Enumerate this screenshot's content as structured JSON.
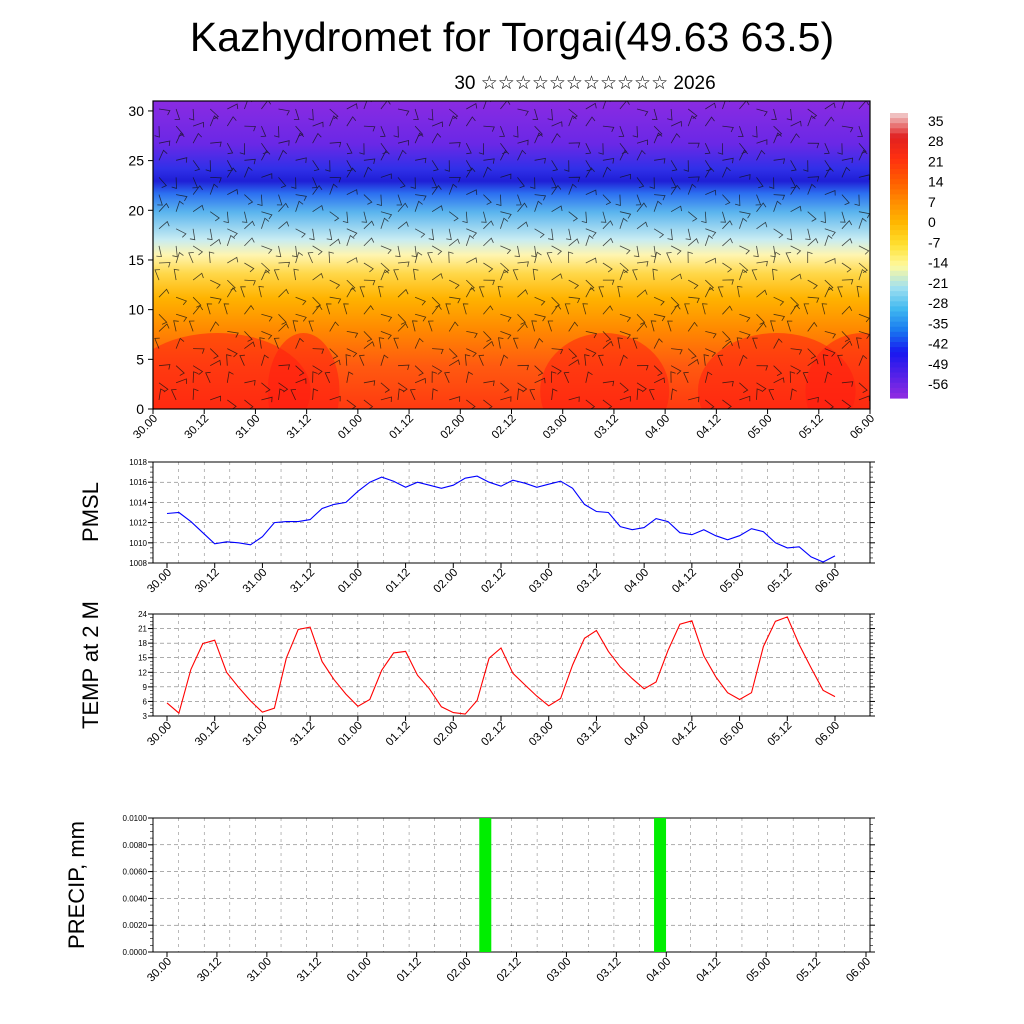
{
  "title": "Kazhydromet for Torgai(49.63 63.5)",
  "subtitle": "30 ☆☆☆☆☆☆☆☆☆☆☆ 2026",
  "time_labels": [
    "30.00",
    "30.12",
    "31.00",
    "31.12",
    "01.00",
    "01.12",
    "02.00",
    "02.12",
    "03.00",
    "03.12",
    "04.00",
    "04.12",
    "05.00",
    "05.12",
    "06.00"
  ],
  "chart_data": [
    {
      "id": "section",
      "type": "heatmap",
      "title": "Kazhydromet for Torgai(49.63 63.5)",
      "xlabel": "",
      "ylabel": "",
      "ylim": [
        0,
        31
      ],
      "yticks": [
        0,
        5,
        10,
        15,
        20,
        25,
        30
      ],
      "colorbar_labels": [
        "35",
        "28",
        "21",
        "14",
        "7",
        "0",
        "-7",
        "-14",
        "-21",
        "-28",
        "-35",
        "-42",
        "-49",
        "-56"
      ],
      "colorbar_colors": [
        "#f0c0c0",
        "#e02020",
        "#ff3010",
        "#ff5a00",
        "#ff8c00",
        "#ffb800",
        "#ffe030",
        "#fffaa0",
        "#a0e0f0",
        "#40b8f0",
        "#1878f0",
        "#1818f0",
        "#5020e8",
        "#8a2be2"
      ]
    },
    {
      "id": "pmsl",
      "type": "line",
      "ylabel": "PMSL",
      "ylim": [
        1008,
        1018
      ],
      "yticks": [
        "1008",
        "1010",
        "1012",
        "1014",
        "1016",
        "1018"
      ],
      "color": "#0000ff",
      "values": [
        1012.9,
        1013.0,
        1012.1,
        1011.0,
        1009.9,
        1010.1,
        1010.0,
        1009.8,
        1010.6,
        1012.0,
        1012.1,
        1012.1,
        1012.3,
        1013.4,
        1013.8,
        1014.0,
        1015.1,
        1016.0,
        1016.5,
        1016.1,
        1015.5,
        1016.0,
        1015.7,
        1015.4,
        1015.7,
        1016.4,
        1016.6,
        1016.0,
        1015.6,
        1016.2,
        1015.9,
        1015.5,
        1015.8,
        1016.1,
        1015.4,
        1013.8,
        1013.1,
        1013.0,
        1011.6,
        1011.3,
        1011.5,
        1012.4,
        1012.1,
        1011.0,
        1010.8,
        1011.3,
        1010.7,
        1010.3,
        1010.7,
        1011.4,
        1011.1,
        1010.0,
        1009.5,
        1009.6,
        1008.6,
        1008.1,
        1008.7
      ]
    },
    {
      "id": "temp",
      "type": "line",
      "ylabel": "TEMP at 2 M",
      "ylim": [
        3,
        24
      ],
      "yticks": [
        "3",
        "6",
        "9",
        "12",
        "15",
        "18",
        "21",
        "24"
      ],
      "color": "#ff0000",
      "values": [
        5.7,
        3.6,
        12.6,
        17.9,
        18.6,
        12.0,
        8.9,
        6.1,
        3.8,
        4.6,
        14.9,
        20.8,
        21.3,
        14.2,
        10.5,
        7.5,
        5.0,
        6.4,
        12.4,
        16.0,
        16.3,
        11.4,
        8.6,
        4.9,
        3.7,
        3.4,
        6.2,
        14.9,
        17.0,
        11.8,
        9.4,
        7.1,
        5.1,
        6.6,
        13.5,
        19.0,
        20.6,
        16.3,
        13.1,
        10.7,
        8.6,
        10.0,
        16.5,
        21.9,
        22.6,
        15.4,
        11.1,
        7.8,
        6.4,
        7.8,
        17.3,
        22.5,
        23.4,
        17.7,
        12.9,
        8.3,
        7.0
      ]
    },
    {
      "id": "precip",
      "type": "bar",
      "ylabel": "PRECIP, mm",
      "ylim": [
        0,
        0.01
      ],
      "yticks": [
        "0.0000",
        "0.0020",
        "0.0040",
        "0.0060",
        "0.0080",
        "0.0100"
      ],
      "color": "#00ee00",
      "bars": [
        {
          "step": 25.5,
          "value": 0.01
        },
        {
          "step": 39.5,
          "value": 0.01
        }
      ]
    }
  ]
}
